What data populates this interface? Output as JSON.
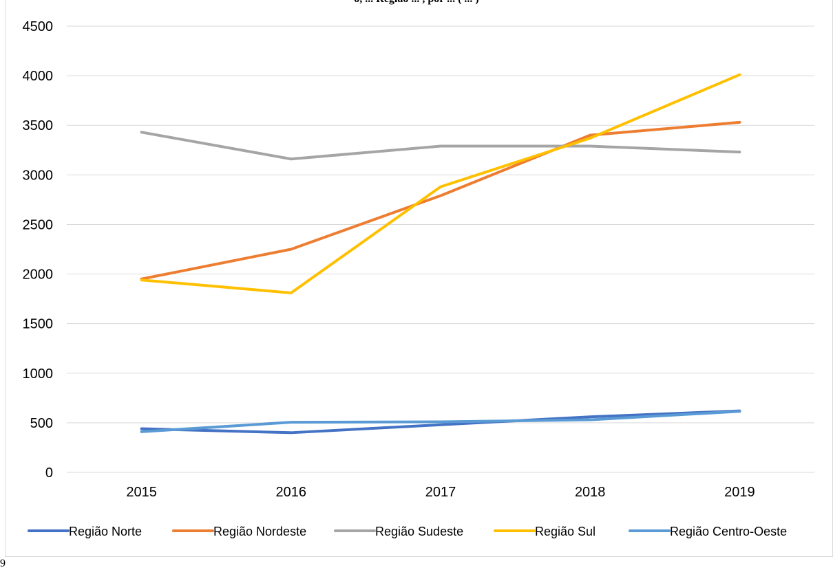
{
  "header_fragment": "o, ... Região ... , por ... ( ... )",
  "corner_fragment": "9",
  "chart_data": {
    "type": "line",
    "title": "",
    "xlabel": "",
    "ylabel": "",
    "x": [
      "2015",
      "2016",
      "2017",
      "2018",
      "2019"
    ],
    "ylim": [
      0,
      4500
    ],
    "yticks": [
      "0",
      "500",
      "1000",
      "1500",
      "2000",
      "2500",
      "3000",
      "3500",
      "4000",
      "4500"
    ],
    "grid": "horizontal",
    "legend_position": "bottom",
    "series": [
      {
        "name": "Região Norte",
        "color": "#4472C4",
        "values": [
          440,
          400,
          480,
          560,
          620
        ]
      },
      {
        "name": "Região Nordeste",
        "color": "#ED7D31",
        "values": [
          1950,
          2250,
          2790,
          3400,
          3530
        ]
      },
      {
        "name": "Região Sudeste",
        "color": "#A5A5A5",
        "values": [
          3430,
          3160,
          3290,
          3290,
          3230
        ]
      },
      {
        "name": "Região Sul",
        "color": "#FFC000",
        "values": [
          1940,
          1810,
          2880,
          3370,
          4010
        ]
      },
      {
        "name": "Região Centro-Oeste",
        "color": "#5B9BD5",
        "values": [
          410,
          505,
          510,
          530,
          615
        ]
      }
    ]
  }
}
